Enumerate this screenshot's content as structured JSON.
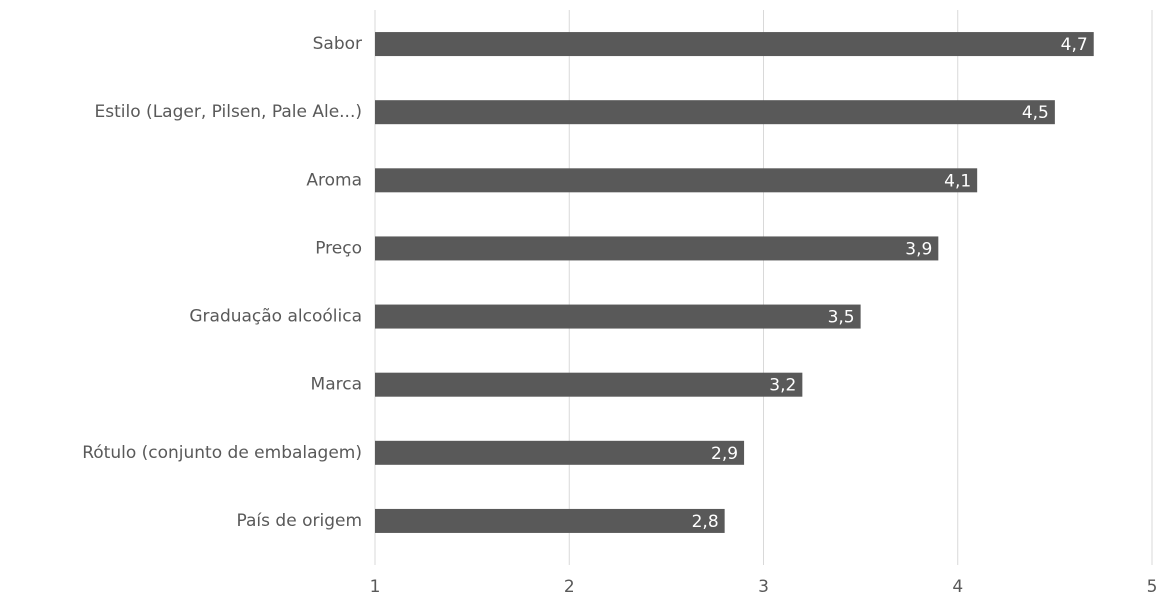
{
  "chart_data": {
    "type": "bar",
    "orientation": "horizontal",
    "categories": [
      "Sabor",
      "Estilo (Lager, Pilsen, Pale Ale...)",
      "Aroma",
      "Preço",
      "Graduação alcoólica",
      "Marca",
      "Rótulo (conjunto de embalagem)",
      "País de origem"
    ],
    "values": [
      4.7,
      4.5,
      4.1,
      3.9,
      3.5,
      3.2,
      2.9,
      2.8
    ],
    "value_labels": [
      "4,7",
      "4,5",
      "4,1",
      "3,9",
      "3,5",
      "3,2",
      "2,9",
      "2,8"
    ],
    "color": "#595959",
    "xlim": [
      1,
      5
    ],
    "xticks": [
      1,
      2,
      3,
      4,
      5
    ],
    "grid": true
  }
}
